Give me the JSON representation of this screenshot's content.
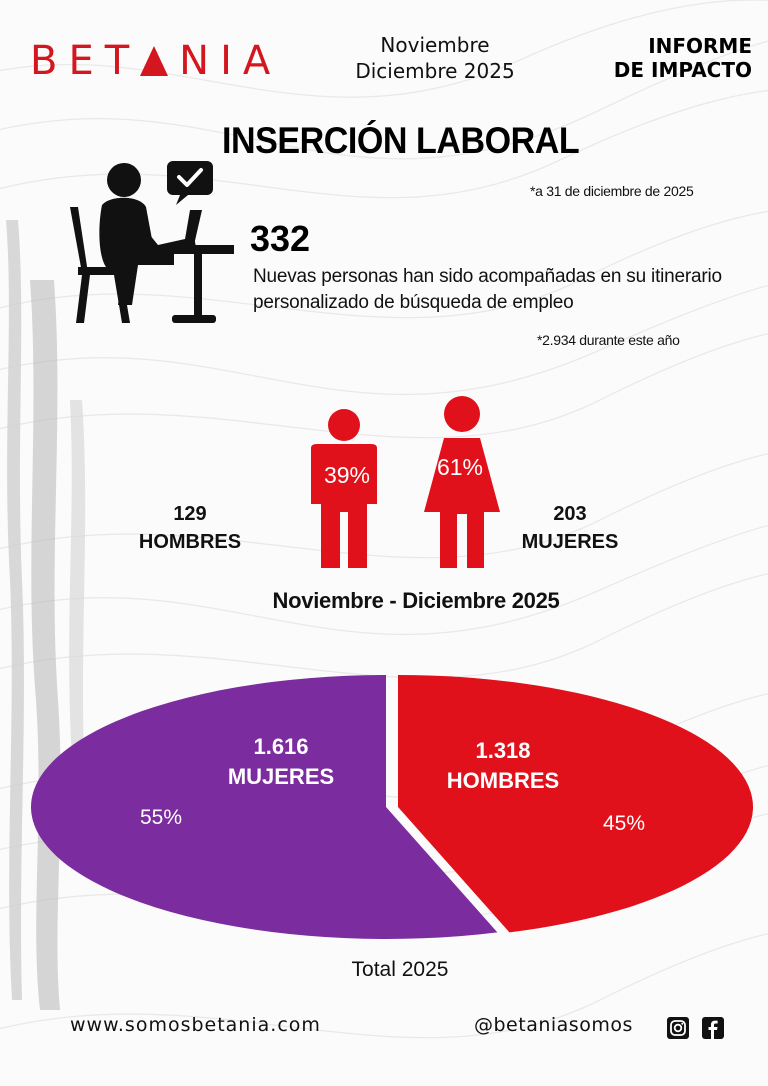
{
  "header": {
    "brand": "BETANIA",
    "brand_before_triangle": "BET",
    "brand_after_triangle": "NIA",
    "period_line1": "Noviembre",
    "period_line2": "Diciembre 2025",
    "report_line1": "INFORME",
    "report_line2": "DE IMPACTO"
  },
  "section": {
    "title": "INSERCIÓN LABORAL",
    "date_note": "*a 31 de diciembre de 2025",
    "big_number": "332",
    "description": "Nuevas personas han sido acompañadas en su itinerario personalizado de búsqueda de empleo",
    "year_note": "*2.934 durante este año",
    "icon": "person-at-desk-with-chat-check-icon"
  },
  "gender_split": {
    "men_count": "129",
    "men_label": "HOMBRES",
    "men_pct": "39%",
    "women_count": "203",
    "women_label": "MUJERES",
    "women_pct": "61%",
    "caption": "Noviembre - Diciembre 2025",
    "icons": [
      "man-icon",
      "woman-icon"
    ]
  },
  "chart_data": {
    "type": "pie",
    "title": "Total 2025",
    "slices": [
      {
        "label": "MUJERES",
        "value": 1616,
        "value_text": "1.616",
        "percent": 55,
        "percent_text": "55%",
        "color": "#7b2c9e"
      },
      {
        "label": "HOMBRES",
        "value": 1318,
        "value_text": "1.318",
        "percent": 45,
        "percent_text": "45%",
        "color": "#e0111b"
      }
    ]
  },
  "footer": {
    "website": "www.somosbetania.com",
    "handle": "@betaniasomos",
    "icons": [
      "instagram-icon",
      "facebook-icon"
    ]
  },
  "colors": {
    "brand_red": "#d4161f",
    "chart_red": "#e0111b",
    "chart_purple": "#7b2c9e"
  }
}
